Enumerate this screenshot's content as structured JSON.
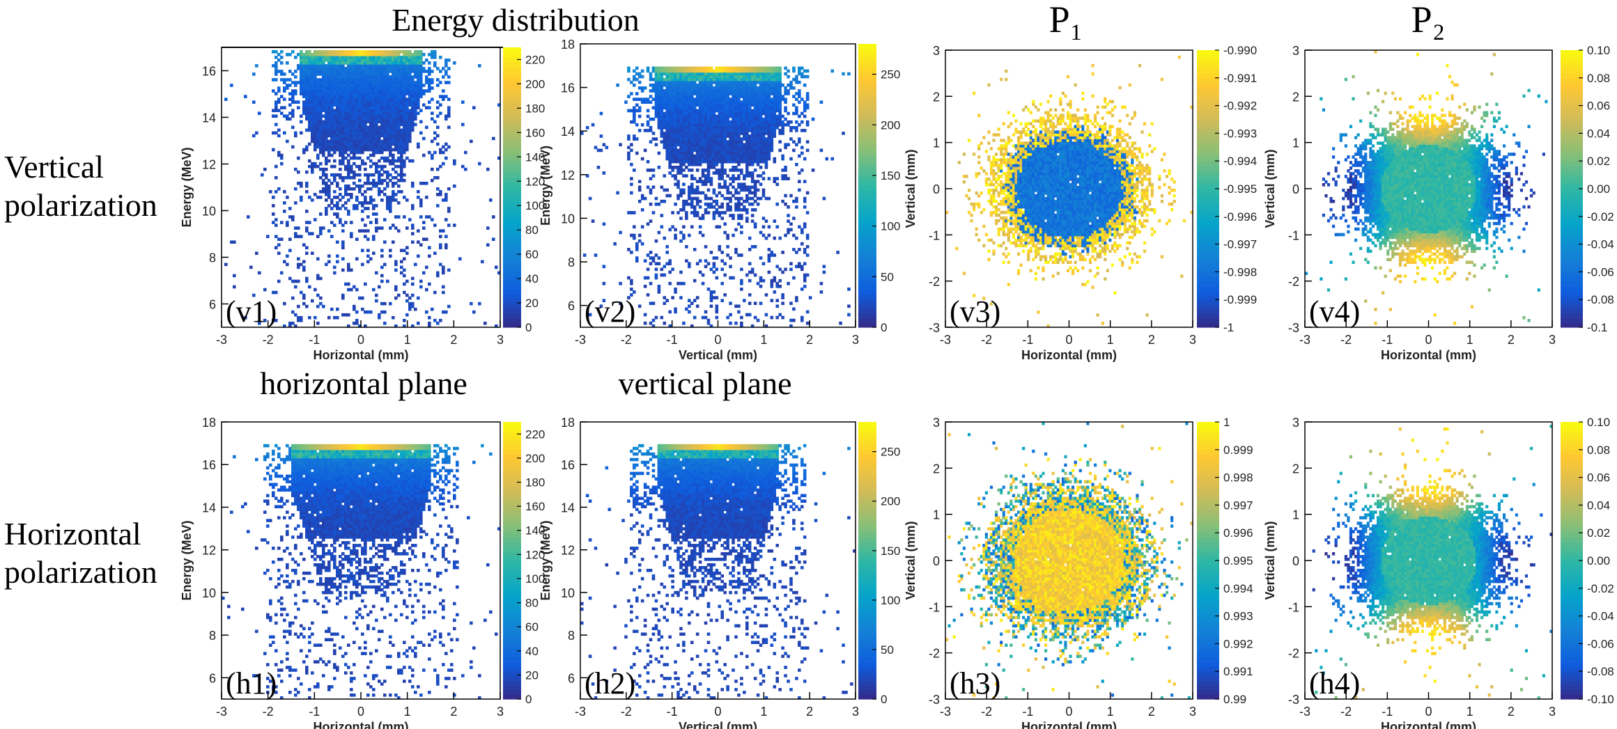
{
  "figure": {
    "top_left_title": "Energy distribution",
    "top_p1_title": "P₁",
    "top_p2_title": "P₂",
    "row_labels": [
      {
        "line1": "Vertical",
        "line2": "polarization"
      },
      {
        "line1": "Horizontal",
        "line2": "polarization"
      }
    ],
    "mid_titles": [
      "horizontal plane",
      "vertical plane"
    ]
  },
  "colors": {
    "palette": [
      "#352a87",
      "#0f5cdd",
      "#1481d6",
      "#06a4ca",
      "#2eb7a4",
      "#87bf77",
      "#d1bb59",
      "#fec832",
      "#f9fb0e"
    ],
    "frame": "#000000"
  },
  "chart_data": [
    {
      "id": "v1",
      "type": "heatmap",
      "kind": "energy",
      "panel_label": "(v1)",
      "xlabel": "Horizontal (mm)",
      "ylabel": "Energy (MeV)",
      "xlim": [
        -3,
        3
      ],
      "ylim": [
        5,
        17
      ],
      "xticks": [
        "-3",
        "-2",
        "-1",
        "0",
        "1",
        "2",
        "3"
      ],
      "yticks": [
        "6",
        "8",
        "10",
        "12",
        "14",
        "16"
      ],
      "zlim": [
        0,
        230
      ],
      "zticks": [
        "0",
        "20",
        "40",
        "60",
        "80",
        "100",
        "120",
        "140",
        "160",
        "180",
        "200",
        "220"
      ],
      "core_halfwidth": 1.3,
      "e_max": 16.9,
      "seed": 11
    },
    {
      "id": "v2",
      "type": "heatmap",
      "kind": "energy",
      "panel_label": "(v2)",
      "xlabel": "Vertical (mm)",
      "ylabel": "Energy (MeV)",
      "xlim": [
        -3,
        3
      ],
      "ylim": [
        5,
        18
      ],
      "xticks": [
        "-3",
        "-2",
        "-1",
        "0",
        "1",
        "2",
        "3"
      ],
      "yticks": [
        "6",
        "8",
        "10",
        "12",
        "14",
        "16",
        "18"
      ],
      "zlim": [
        0,
        280
      ],
      "zticks": [
        "0",
        "50",
        "100",
        "150",
        "200",
        "250"
      ],
      "core_halfwidth": 1.4,
      "e_max": 16.9,
      "seed": 23
    },
    {
      "id": "v3",
      "type": "heatmap",
      "kind": "pol",
      "panel_label": "(v3)",
      "xlabel": "Horizontal (mm)",
      "ylabel": "Vertical (mm)",
      "xlim": [
        -3,
        3
      ],
      "ylim": [
        -3,
        3
      ],
      "xticks": [
        "-3",
        "-2",
        "-1",
        "0",
        "1",
        "2",
        "3"
      ],
      "yticks": [
        "-3",
        "-2",
        "-1",
        "0",
        "1",
        "2",
        "3"
      ],
      "zlim": [
        -1,
        -0.99
      ],
      "zticks": [
        "-1",
        "-0.999",
        "-0.998",
        "-0.997",
        "-0.996",
        "-0.995",
        "-0.994",
        "-0.993",
        "-0.992",
        "-0.991",
        "-0.990"
      ],
      "rx": 1.6,
      "ry": 1.3,
      "mode": "p1v",
      "seed": 37
    },
    {
      "id": "v4",
      "type": "heatmap",
      "kind": "pol",
      "panel_label": "(v4)",
      "xlabel": "Horizontal (mm)",
      "ylabel": "Vertical (mm)",
      "xlim": [
        -3,
        3
      ],
      "ylim": [
        -3,
        3
      ],
      "xticks": [
        "-3",
        "-2",
        "-1",
        "0",
        "1",
        "2",
        "3"
      ],
      "yticks": [
        "-3",
        "-2",
        "-1",
        "0",
        "1",
        "2",
        "3"
      ],
      "zlim": [
        -0.1,
        0.1
      ],
      "zticks": [
        "-0.1",
        "-0.08",
        "-0.06",
        "-0.04",
        "-0.02",
        "0.00",
        "0.02",
        "0.04",
        "0.06",
        "0.08",
        "0.10"
      ],
      "rx": 1.6,
      "ry": 1.3,
      "mode": "p2v",
      "seed": 41
    },
    {
      "id": "h1",
      "type": "heatmap",
      "kind": "energy",
      "panel_label": "(h1)",
      "xlabel": "Horizontal (mm)",
      "ylabel": "Energy (MeV)",
      "xlim": [
        -3,
        3
      ],
      "ylim": [
        5,
        18
      ],
      "xticks": [
        "-3",
        "-2",
        "-1",
        "0",
        "1",
        "2",
        "3"
      ],
      "yticks": [
        "6",
        "8",
        "10",
        "12",
        "14",
        "16",
        "18"
      ],
      "zlim": [
        0,
        230
      ],
      "zticks": [
        "0",
        "20",
        "40",
        "60",
        "80",
        "100",
        "120",
        "140",
        "160",
        "180",
        "200",
        "220"
      ],
      "core_halfwidth": 1.5,
      "e_max": 16.9,
      "seed": 53
    },
    {
      "id": "h2",
      "type": "heatmap",
      "kind": "energy",
      "panel_label": "(h2)",
      "xlabel": "Vertical (mm)",
      "ylabel": "Energy (MeV)",
      "xlim": [
        -3,
        3
      ],
      "ylim": [
        5,
        18
      ],
      "xticks": [
        "-3",
        "-2",
        "-1",
        "0",
        "1",
        "2",
        "3"
      ],
      "yticks": [
        "6",
        "8",
        "10",
        "12",
        "14",
        "16",
        "18"
      ],
      "zlim": [
        0,
        280
      ],
      "zticks": [
        "0",
        "50",
        "100",
        "150",
        "200",
        "250"
      ],
      "core_halfwidth": 1.3,
      "e_max": 16.9,
      "seed": 67
    },
    {
      "id": "h3",
      "type": "heatmap",
      "kind": "pol",
      "panel_label": "(h3)",
      "xlabel": "Horizontal (mm)",
      "ylabel": "Vertical (mm)",
      "xlim": [
        -3,
        3
      ],
      "ylim": [
        -3,
        3
      ],
      "xticks": [
        "-3",
        "-2",
        "-1",
        "0",
        "1",
        "2",
        "3"
      ],
      "yticks": [
        "-3",
        "-2",
        "-1",
        "0",
        "1",
        "2",
        "3"
      ],
      "zlim": [
        0.99,
        1
      ],
      "zticks": [
        "0.99",
        "0.991",
        "0.992",
        "0.993",
        "0.994",
        "0.995",
        "0.996",
        "0.997",
        "0.998",
        "0.999",
        "1"
      ],
      "rx": 1.7,
      "ry": 1.4,
      "mode": "p1h",
      "seed": 79
    },
    {
      "id": "h4",
      "type": "heatmap",
      "kind": "pol",
      "panel_label": "(h4)",
      "xlabel": "Horizontal (mm)",
      "ylabel": "Vertical (mm)",
      "xlim": [
        -3,
        3
      ],
      "ylim": [
        -3,
        3
      ],
      "xticks": [
        "-3",
        "-2",
        "-1",
        "0",
        "1",
        "2",
        "3"
      ],
      "yticks": [
        "-3",
        "-2",
        "-1",
        "0",
        "1",
        "2",
        "3"
      ],
      "zlim": [
        -0.1,
        0.1
      ],
      "zticks": [
        "-0.10",
        "-0.08",
        "-0.06",
        "-0.04",
        "-0.02",
        "0.00",
        "0.02",
        "0.04",
        "0.06",
        "0.08",
        "0.10"
      ],
      "rx": 1.6,
      "ry": 1.3,
      "mode": "p2h",
      "seed": 83
    }
  ]
}
